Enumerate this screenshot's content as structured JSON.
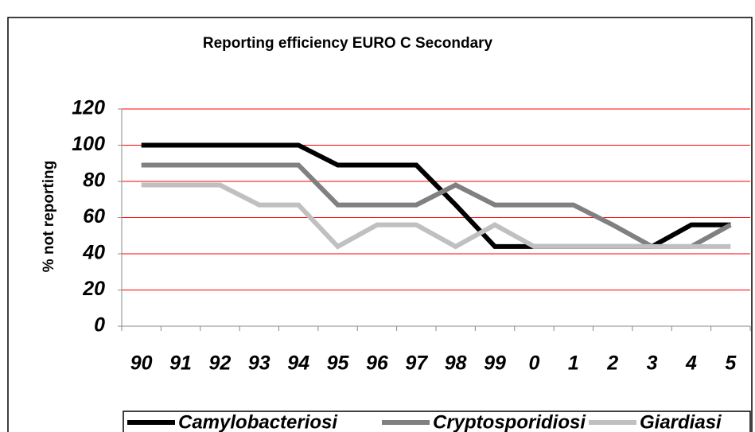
{
  "chart_data": {
    "type": "line",
    "title": "Reporting efficiency EURO C Secondary",
    "y_label": "% not reporting",
    "categories": [
      "90",
      "91",
      "92",
      "93",
      "94",
      "95",
      "96",
      "97",
      "98",
      "99",
      "0",
      "1",
      "2",
      "3",
      "4",
      "5"
    ],
    "series": [
      {
        "name": "Camylobacteriosi",
        "color": "#000000",
        "values": [
          100,
          100,
          100,
          100,
          100,
          89,
          89,
          89,
          67,
          44,
          44,
          44,
          44,
          44,
          56,
          56
        ]
      },
      {
        "name": "Cryptosporidiosi",
        "color": "#808080",
        "values": [
          89,
          89,
          89,
          89,
          89,
          67,
          67,
          67,
          78,
          67,
          67,
          67,
          56,
          44,
          44,
          56
        ]
      },
      {
        "name": "Giardiasi",
        "color": "#c0c0c0",
        "values": [
          78,
          78,
          78,
          67,
          67,
          44,
          56,
          56,
          44,
          56,
          44,
          44,
          44,
          44,
          44,
          44
        ]
      }
    ],
    "ylim": [
      0,
      120
    ],
    "yticks": [
      0,
      20,
      40,
      60,
      80,
      100,
      120
    ],
    "grid": true,
    "grid_color": "#ff0000",
    "legend": "bottom"
  }
}
